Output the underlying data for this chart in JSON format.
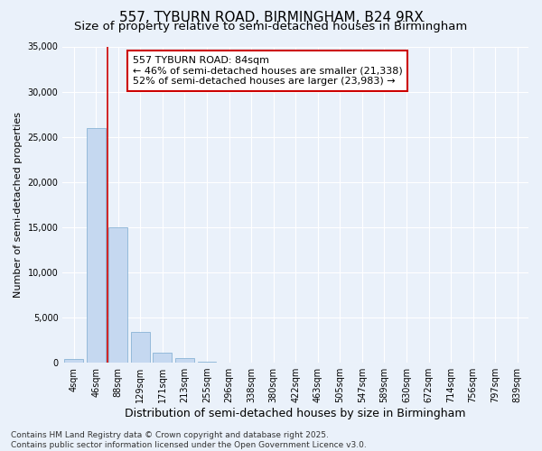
{
  "title1": "557, TYBURN ROAD, BIRMINGHAM, B24 9RX",
  "title2": "Size of property relative to semi-detached houses in Birmingham",
  "xlabel": "Distribution of semi-detached houses by size in Birmingham",
  "ylabel": "Number of semi-detached properties",
  "categories": [
    "4sqm",
    "46sqm",
    "88sqm",
    "129sqm",
    "171sqm",
    "213sqm",
    "255sqm",
    "296sqm",
    "338sqm",
    "380sqm",
    "422sqm",
    "463sqm",
    "505sqm",
    "547sqm",
    "589sqm",
    "630sqm",
    "672sqm",
    "714sqm",
    "756sqm",
    "797sqm",
    "839sqm"
  ],
  "values": [
    400,
    26000,
    15000,
    3400,
    1100,
    500,
    150,
    30,
    0,
    0,
    0,
    0,
    0,
    0,
    0,
    0,
    0,
    0,
    0,
    0,
    0
  ],
  "bar_color": "#c5d8f0",
  "bar_edgecolor": "#7aaad0",
  "vline_color": "#cc0000",
  "vline_x": 1.5,
  "annotation_text": "557 TYBURN ROAD: 84sqm\n← 46% of semi-detached houses are smaller (21,338)\n52% of semi-detached houses are larger (23,983) →",
  "annotation_box_facecolor": "#ffffff",
  "annotation_box_edgecolor": "#cc0000",
  "ylim": [
    0,
    35000
  ],
  "yticks": [
    0,
    5000,
    10000,
    15000,
    20000,
    25000,
    30000,
    35000
  ],
  "background_color": "#eaf1fa",
  "grid_color": "#ffffff",
  "footer": "Contains HM Land Registry data © Crown copyright and database right 2025.\nContains public sector information licensed under the Open Government Licence v3.0.",
  "title1_fontsize": 11,
  "title2_fontsize": 9.5,
  "xlabel_fontsize": 9,
  "ylabel_fontsize": 8,
  "tick_fontsize": 7,
  "annotation_fontsize": 8,
  "footer_fontsize": 6.5
}
